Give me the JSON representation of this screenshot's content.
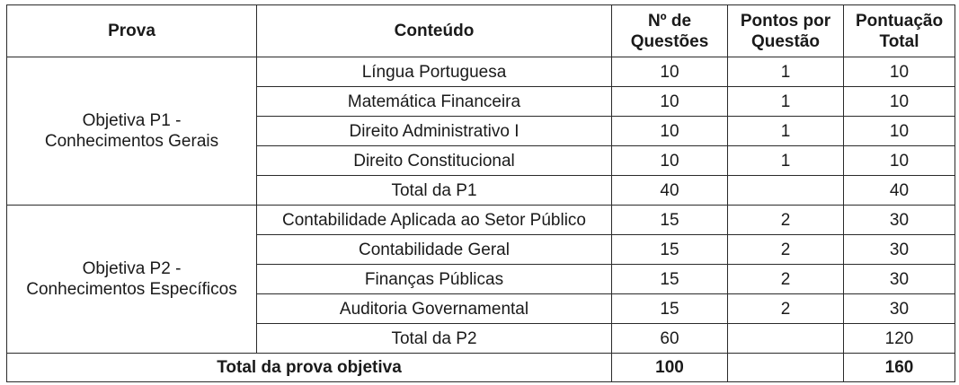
{
  "headers": {
    "prova": "Prova",
    "conteudo": "Conteúdo",
    "num_questoes": [
      "Nº de",
      "Questões"
    ],
    "pontos_por_questao": [
      "Pontos por",
      "Questão"
    ],
    "pontuacao_total": [
      "Pontuação",
      "Total"
    ]
  },
  "groups": [
    {
      "prova": [
        "Objetiva P1 -",
        "Conhecimentos Gerais"
      ],
      "rows": [
        {
          "conteudo": "Língua Portuguesa",
          "questoes": "10",
          "pontos": "1",
          "total": "10"
        },
        {
          "conteudo": "Matemática Financeira",
          "questoes": "10",
          "pontos": "1",
          "total": "10"
        },
        {
          "conteudo": "Direito Administrativo I",
          "questoes": "10",
          "pontos": "1",
          "total": "10"
        },
        {
          "conteudo": "Direito Constitucional",
          "questoes": "10",
          "pontos": "1",
          "total": "10"
        },
        {
          "conteudo": "Total da P1",
          "questoes": "40",
          "pontos": "",
          "total": "40"
        }
      ]
    },
    {
      "prova": [
        "Objetiva P2 -",
        "Conhecimentos Específicos"
      ],
      "rows": [
        {
          "conteudo": "Contabilidade Aplicada ao Setor Público",
          "questoes": "15",
          "pontos": "2",
          "total": "30"
        },
        {
          "conteudo": "Contabilidade Geral",
          "questoes": "15",
          "pontos": "2",
          "total": "30"
        },
        {
          "conteudo": "Finanças Públicas",
          "questoes": "15",
          "pontos": "2",
          "total": "30"
        },
        {
          "conteudo": "Auditoria Governamental",
          "questoes": "15",
          "pontos": "2",
          "total": "30"
        },
        {
          "conteudo": "Total da P2",
          "questoes": "60",
          "pontos": "",
          "total": "120"
        }
      ]
    }
  ],
  "grand_total": {
    "label": "Total da prova objetiva",
    "questoes": "100",
    "pontos": "",
    "total": "160"
  }
}
